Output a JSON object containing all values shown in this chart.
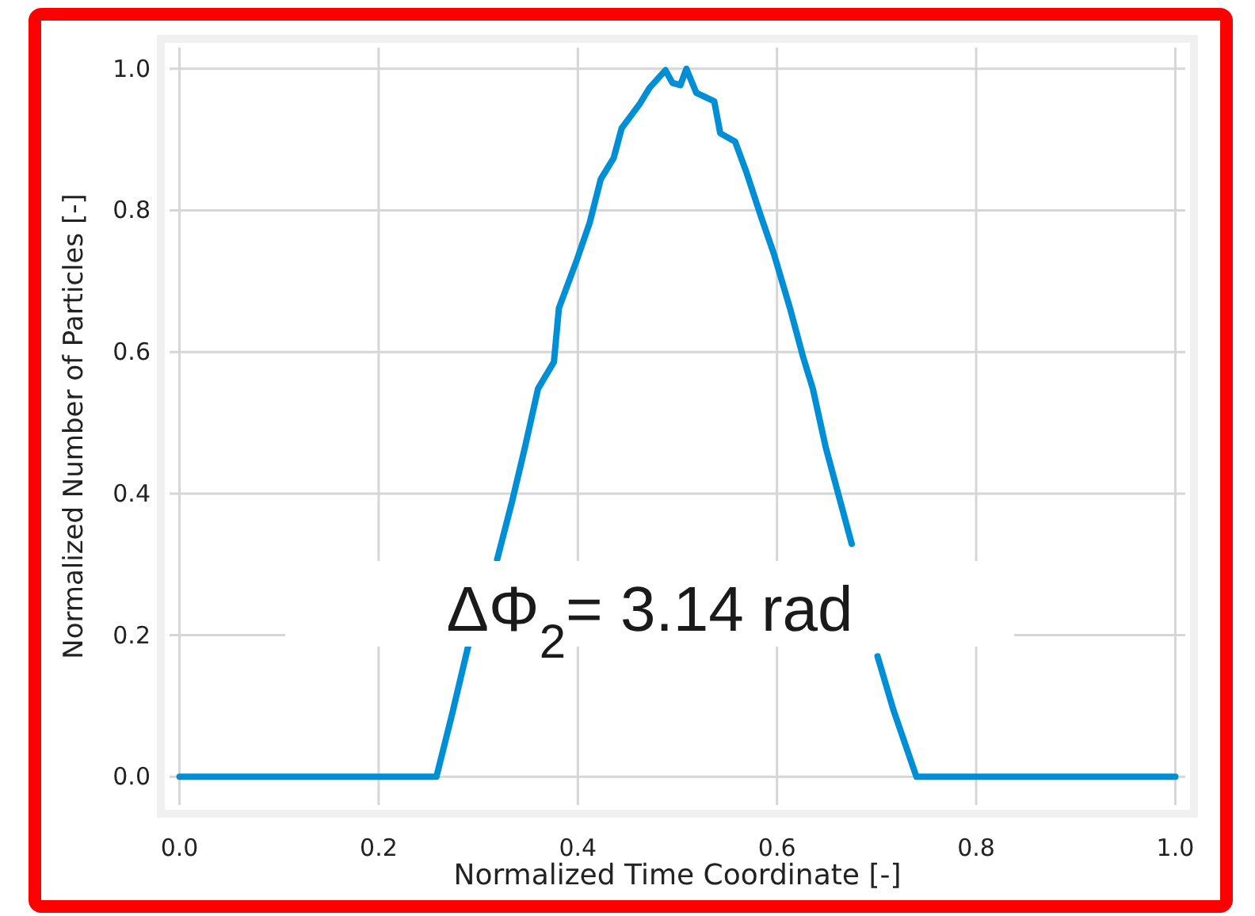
{
  "chart_data": {
    "type": "line",
    "xlabel": "Normalized Time Coordinate [-]",
    "ylabel": "Normalized Number of Particles [-]",
    "annotations": [
      "ΔΦ$_{2}$= 3.14 rad"
    ],
    "xlim": [
      -0.01,
      1.01
    ],
    "ylim": [
      -0.04,
      1.03
    ],
    "xticks": [
      {
        "value": 0,
        "label": "0.0"
      },
      0.2,
      0.4,
      0.6,
      0.8,
      {
        "value": 1,
        "label": "1.0"
      }
    ],
    "yticks": [
      {
        "value": 0,
        "label": "0.0"
      },
      0.2,
      0.4,
      0.6,
      0.8,
      {
        "value": 1,
        "label": "1.0"
      }
    ],
    "grid": true,
    "marker": "none",
    "line_style": "solid",
    "series": [
      {
        "color": "#008fd5",
        "x": [
          0,
          0.1,
          0.2,
          0.258,
          0.274,
          0.29,
          0.305,
          0.319,
          0.334,
          0.347,
          0.36,
          0.376,
          0.381,
          0.399,
          0.412,
          0.423,
          0.436,
          0.444,
          0.462,
          0.472,
          0.488,
          0.495,
          0.503,
          0.509,
          0.519,
          0.537,
          0.543,
          0.558,
          0.569,
          0.584,
          0.597,
          0.613,
          0.626,
          0.636,
          0.649,
          0.662,
          0.675,
          0.683,
          0.692,
          0.701,
          0.717,
          0.74,
          0.8,
          0.9,
          1
        ],
        "values": [
          0,
          0,
          0,
          0,
          0.09,
          0.185,
          null,
          0.307,
          0.389,
          0.466,
          0.548,
          0.586,
          0.662,
          0.73,
          0.783,
          0.844,
          0.874,
          0.916,
          0.95,
          0.973,
          0.998,
          0.98,
          0.977,
          1.0,
          0.966,
          0.954,
          0.909,
          0.897,
          0.855,
          0.791,
          0.738,
          0.662,
          0.594,
          0.548,
          0.465,
          0.397,
          0.329,
          null,
          null,
          0.17,
          0.094,
          0,
          0,
          0,
          0
        ]
      }
    ]
  }
}
